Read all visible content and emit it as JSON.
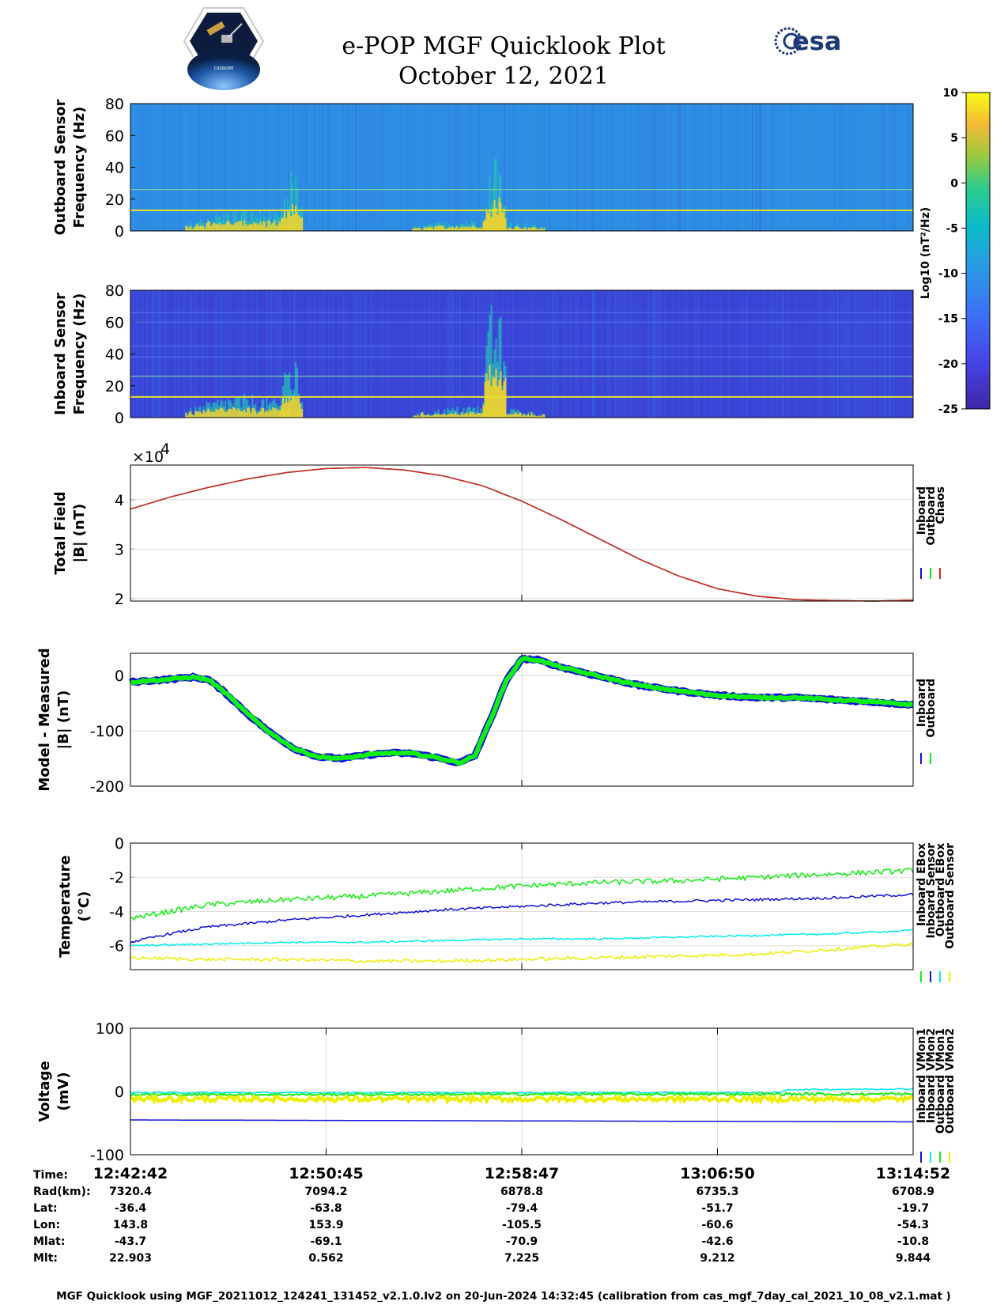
{
  "header": {
    "title": "e-POP MGF Quicklook Plot",
    "subtitle": "October 12, 2021",
    "logo_left_text": "CASSIOPE",
    "logo_right_text": "esa"
  },
  "colors": {
    "inboard": "#1111dd",
    "outboard": "#11ee11",
    "chaos": "#dd2222",
    "cyan": "#00eeee",
    "yellow": "#eeee00",
    "spec_top_bg": "#2d8fe3",
    "spec_bot_bg": "#3a45d8"
  },
  "chart_data": [
    {
      "id": "outboard-spectrogram",
      "type": "heatmap",
      "ylabel": [
        "Outboard Sensor",
        "Frequency (Hz)"
      ],
      "ylim": [
        0,
        80
      ],
      "yticks": [
        "80",
        "60",
        "40",
        "20",
        "0"
      ],
      "ytick_values": [
        80,
        60,
        40,
        20,
        0
      ],
      "x_fraction_range": [
        0,
        1
      ],
      "line_frequencies_hz": [
        13,
        26
      ],
      "activity_bands": [
        {
          "x_start": 0.07,
          "x_end": 0.22,
          "max_freq": 15
        },
        {
          "x_start": 0.19,
          "x_end": 0.22,
          "max_freq": 40
        },
        {
          "x_start": 0.36,
          "x_end": 0.53,
          "max_freq": 8
        },
        {
          "x_start": 0.45,
          "x_end": 0.48,
          "max_freq": 48
        }
      ]
    },
    {
      "id": "inboard-spectrogram",
      "type": "heatmap",
      "ylabel": [
        "Inboard Sensor",
        "Frequency (Hz)"
      ],
      "ylim": [
        0,
        80
      ],
      "yticks": [
        "80",
        "60",
        "40",
        "20",
        "0"
      ],
      "ytick_values": [
        80,
        60,
        40,
        20,
        0
      ],
      "line_frequencies_hz": [
        13,
        26
      ],
      "activity_bands": [
        {
          "x_start": 0.07,
          "x_end": 0.22,
          "max_freq": 15
        },
        {
          "x_start": 0.19,
          "x_end": 0.22,
          "max_freq": 40
        },
        {
          "x_start": 0.36,
          "x_end": 0.53,
          "max_freq": 8
        },
        {
          "x_start": 0.45,
          "x_end": 0.48,
          "max_freq": 80
        }
      ]
    },
    {
      "id": "colorbar",
      "type": "colorbar",
      "label": "Log10 (nT²/Hz)",
      "ylim": [
        -25,
        10
      ],
      "ticks": [
        "10",
        "5",
        "0",
        "-5",
        "-10",
        "-15",
        "-20",
        "-25"
      ],
      "tick_values": [
        10,
        5,
        0,
        -5,
        -10,
        -15,
        -20,
        -25
      ]
    },
    {
      "id": "total-field",
      "type": "line",
      "ylabel": [
        "Total Field",
        "|B| (nT)"
      ],
      "exponent_label": "×10",
      "exponent_power": "4",
      "ylim": [
        1.95,
        4.7
      ],
      "yticks": [
        "4",
        "3",
        "2"
      ],
      "ytick_values": [
        4,
        3,
        2
      ],
      "legend": [
        "Inboard",
        "Outboard",
        "Chaos"
      ],
      "series": [
        {
          "name": "Inboard",
          "x": [
            0,
            0.05,
            0.1,
            0.15,
            0.2,
            0.25,
            0.3,
            0.35,
            0.4,
            0.45,
            0.5,
            0.55,
            0.6,
            0.65,
            0.7,
            0.75,
            0.8,
            0.85,
            0.9,
            0.95,
            1.0
          ],
          "y": [
            3.81,
            4.05,
            4.25,
            4.42,
            4.55,
            4.63,
            4.65,
            4.6,
            4.48,
            4.28,
            3.97,
            3.6,
            3.2,
            2.8,
            2.46,
            2.2,
            2.05,
            1.98,
            1.96,
            1.95,
            1.97
          ]
        },
        {
          "name": "Outboard",
          "x": [
            0,
            0.05,
            0.1,
            0.15,
            0.2,
            0.25,
            0.3,
            0.35,
            0.4,
            0.45,
            0.5,
            0.55,
            0.6,
            0.65,
            0.7,
            0.75,
            0.8,
            0.85,
            0.9,
            0.95,
            1.0
          ],
          "y": [
            3.81,
            4.05,
            4.25,
            4.42,
            4.55,
            4.63,
            4.65,
            4.6,
            4.48,
            4.28,
            3.97,
            3.6,
            3.2,
            2.8,
            2.46,
            2.2,
            2.05,
            1.98,
            1.96,
            1.95,
            1.97
          ]
        },
        {
          "name": "Chaos",
          "x": [
            0,
            0.05,
            0.1,
            0.15,
            0.2,
            0.25,
            0.3,
            0.35,
            0.4,
            0.45,
            0.5,
            0.55,
            0.6,
            0.65,
            0.7,
            0.75,
            0.8,
            0.85,
            0.9,
            0.95,
            1.0
          ],
          "y": [
            3.81,
            4.05,
            4.25,
            4.42,
            4.55,
            4.63,
            4.65,
            4.6,
            4.48,
            4.28,
            3.97,
            3.6,
            3.2,
            2.8,
            2.46,
            2.2,
            2.05,
            1.98,
            1.96,
            1.95,
            1.97
          ]
        }
      ]
    },
    {
      "id": "model-minus-measured",
      "type": "line",
      "ylabel": [
        "Model - Measured",
        "|B| (nT)"
      ],
      "ylim": [
        -200,
        40
      ],
      "yticks": [
        "0",
        "-100",
        "-200"
      ],
      "ytick_values": [
        0,
        -100,
        -200
      ],
      "legend": [
        "Inboard",
        "Outboard"
      ],
      "series": [
        {
          "name": "Inboard",
          "x": [
            0,
            0.04,
            0.08,
            0.1,
            0.12,
            0.15,
            0.18,
            0.21,
            0.24,
            0.27,
            0.3,
            0.33,
            0.36,
            0.39,
            0.42,
            0.44,
            0.46,
            0.48,
            0.5,
            0.52,
            0.55,
            0.6,
            0.65,
            0.7,
            0.75,
            0.8,
            0.85,
            0.9,
            0.95,
            1.0
          ],
          "y": [
            -12,
            -8,
            -3,
            -8,
            -30,
            -70,
            -105,
            -133,
            -147,
            -150,
            -144,
            -140,
            -141,
            -148,
            -158,
            -145,
            -80,
            -10,
            30,
            28,
            15,
            -2,
            -18,
            -28,
            -36,
            -40,
            -40,
            -44,
            -48,
            -53
          ]
        },
        {
          "name": "Outboard",
          "x": [
            0,
            0.04,
            0.08,
            0.1,
            0.12,
            0.15,
            0.18,
            0.21,
            0.24,
            0.27,
            0.3,
            0.33,
            0.36,
            0.39,
            0.42,
            0.44,
            0.46,
            0.48,
            0.5,
            0.52,
            0.55,
            0.6,
            0.65,
            0.7,
            0.75,
            0.8,
            0.85,
            0.9,
            0.95,
            1.0
          ],
          "y": [
            -12,
            -8,
            -3,
            -8,
            -30,
            -70,
            -105,
            -133,
            -147,
            -150,
            -144,
            -140,
            -141,
            -148,
            -158,
            -145,
            -80,
            -10,
            30,
            28,
            15,
            -2,
            -18,
            -28,
            -36,
            -40,
            -40,
            -44,
            -48,
            -53
          ]
        }
      ]
    },
    {
      "id": "temperature",
      "type": "line",
      "ylabel": [
        "Temperature",
        "(°C)"
      ],
      "ylim": [
        -7.4,
        0
      ],
      "yticks": [
        "0",
        "-2",
        "-4",
        "-6"
      ],
      "ytick_values": [
        0,
        -2,
        -4,
        -6
      ],
      "legend": [
        "Inboard EBox",
        "Inboard Sensor",
        "Outboard EBox",
        "Outboard Sensor"
      ],
      "series": [
        {
          "name": "Inboard EBox",
          "x": [
            0,
            0.05,
            0.1,
            0.2,
            0.3,
            0.4,
            0.5,
            0.6,
            0.7,
            0.8,
            0.9,
            1.0
          ],
          "y": [
            -4.4,
            -4.0,
            -3.6,
            -3.3,
            -3.1,
            -2.8,
            -2.5,
            -2.3,
            -2.2,
            -2.0,
            -1.8,
            -1.6
          ]
        },
        {
          "name": "Inboard Sensor",
          "x": [
            0,
            0.05,
            0.1,
            0.2,
            0.3,
            0.4,
            0.5,
            0.6,
            0.7,
            0.8,
            0.9,
            1.0
          ],
          "y": [
            -5.8,
            -5.3,
            -4.9,
            -4.5,
            -4.2,
            -3.9,
            -3.7,
            -3.5,
            -3.4,
            -3.3,
            -3.2,
            -3.0
          ]
        },
        {
          "name": "Outboard EBox",
          "x": [
            0,
            0.1,
            0.2,
            0.3,
            0.4,
            0.5,
            0.6,
            0.7,
            0.8,
            0.9,
            1.0
          ],
          "y": [
            -6.0,
            -5.9,
            -5.8,
            -5.8,
            -5.7,
            -5.6,
            -5.6,
            -5.5,
            -5.4,
            -5.3,
            -5.1
          ]
        },
        {
          "name": "Outboard Sensor",
          "x": [
            0,
            0.1,
            0.2,
            0.3,
            0.4,
            0.5,
            0.6,
            0.7,
            0.8,
            0.9,
            1.0
          ],
          "y": [
            -6.7,
            -6.8,
            -6.8,
            -6.9,
            -6.9,
            -6.8,
            -6.7,
            -6.6,
            -6.5,
            -6.2,
            -5.9
          ]
        }
      ]
    },
    {
      "id": "voltage",
      "type": "line",
      "ylabel": [
        "Voltage",
        "(mV)"
      ],
      "ylim": [
        -100,
        100
      ],
      "yticks": [
        "100",
        "0",
        "-100"
      ],
      "ytick_values": [
        100,
        0,
        -100
      ],
      "legend": [
        "Inboard VMon1",
        "Inboard VMon2",
        "Outboard VMon1",
        "Outboard VMon2"
      ],
      "series": [
        {
          "name": "Inboard VMon1",
          "x": [
            0,
            1.0
          ],
          "y": [
            -45,
            -48
          ]
        },
        {
          "name": "Inboard VMon2",
          "x": [
            0,
            0.83,
            0.84,
            1.0
          ],
          "y": [
            -2,
            -2,
            3,
            4
          ]
        },
        {
          "name": "Outboard VMon1",
          "x": [
            0,
            1.0
          ],
          "y": [
            -5,
            -4
          ]
        },
        {
          "name": "Outboard VMon2",
          "x": [
            0,
            1.0
          ],
          "y": [
            -12,
            -12
          ]
        }
      ]
    }
  ],
  "ephemeris": {
    "labels": [
      "Time:",
      "Rad(km):",
      "Lat:",
      "Lon:",
      "Mlat:",
      "Mlt:"
    ],
    "columns": [
      [
        "12:42:42",
        "7320.4",
        "-36.4",
        "143.8",
        "-43.7",
        "22.903"
      ],
      [
        "12:50:45",
        "7094.2",
        "-63.8",
        "153.9",
        "-69.1",
        "0.562"
      ],
      [
        "12:58:47",
        "6878.8",
        "-79.4",
        "-105.5",
        "-70.9",
        "7.225"
      ],
      [
        "13:06:50",
        "6735.3",
        "-51.7",
        "-60.6",
        "-42.6",
        "9.212"
      ],
      [
        "13:14:52",
        "6708.9",
        "-19.7",
        "-54.3",
        "-10.8",
        "9.844"
      ]
    ]
  },
  "footer": "MGF Quicklook using MGF_20211012_124241_131452_v2.1.0.lv2 on 20-Jun-2024 14:32:45 (calibration from cas_mgf_7day_cal_2021_10_08_v2.1.mat )"
}
